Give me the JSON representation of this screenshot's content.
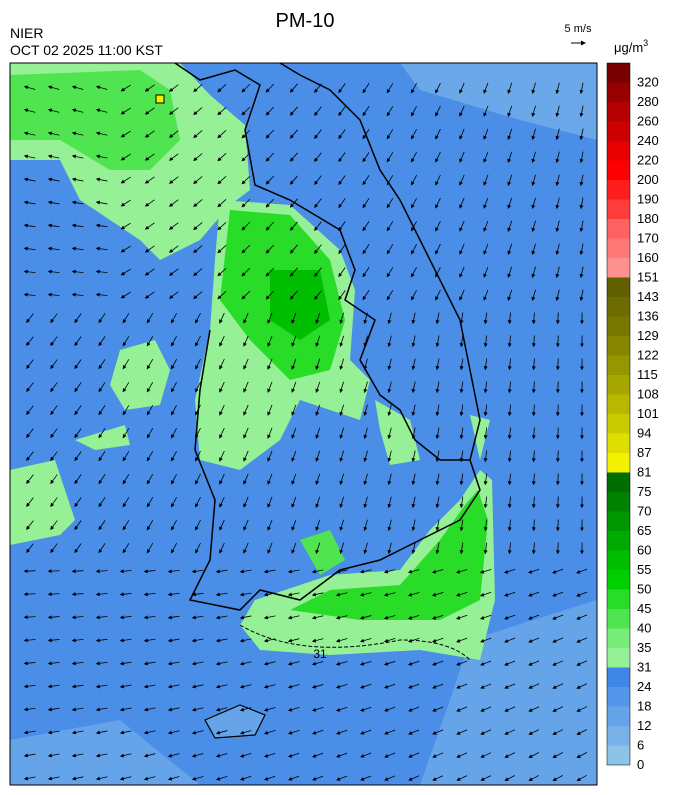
{
  "header": {
    "title": "PM-10",
    "agency": "NIER",
    "timestamp": "OCT 02 2025 11:00 KST"
  },
  "wind_scale": {
    "label": "5 m/s"
  },
  "legend": {
    "unit": "μg/m",
    "unit_exponent": "3",
    "levels": [
      {
        "label": 0,
        "color": "#8ec3e8"
      },
      {
        "label": 6,
        "color": "#78b2e8"
      },
      {
        "label": 12,
        "color": "#66a4ea"
      },
      {
        "label": 18,
        "color": "#5496ea"
      },
      {
        "label": 24,
        "color": "#3f86e6"
      },
      {
        "label": 31,
        "color": "#96f096"
      },
      {
        "label": 35,
        "color": "#78ec78"
      },
      {
        "label": 40,
        "color": "#50e450"
      },
      {
        "label": 45,
        "color": "#28dc28"
      },
      {
        "label": 50,
        "color": "#00d000"
      },
      {
        "label": 55,
        "color": "#00be00"
      },
      {
        "label": 60,
        "color": "#00aa00"
      },
      {
        "label": 65,
        "color": "#009600"
      },
      {
        "label": 70,
        "color": "#008200"
      },
      {
        "label": 75,
        "color": "#006e00"
      },
      {
        "label": 81,
        "color": "#f2f200"
      },
      {
        "label": 87,
        "color": "#dede00"
      },
      {
        "label": 94,
        "color": "#caca00"
      },
      {
        "label": 101,
        "color": "#b8b800"
      },
      {
        "label": 108,
        "color": "#a6a600"
      },
      {
        "label": 115,
        "color": "#969600"
      },
      {
        "label": 122,
        "color": "#868600"
      },
      {
        "label": 129,
        "color": "#787800"
      },
      {
        "label": 136,
        "color": "#6c6c00"
      },
      {
        "label": 143,
        "color": "#606000"
      },
      {
        "label": 151,
        "color": "#ff9090"
      },
      {
        "label": 160,
        "color": "#ff7878"
      },
      {
        "label": 170,
        "color": "#ff6060"
      },
      {
        "label": 180,
        "color": "#ff3c3c"
      },
      {
        "label": 190,
        "color": "#ff1e1e"
      },
      {
        "label": 200,
        "color": "#ff0000"
      },
      {
        "label": 220,
        "color": "#e60000"
      },
      {
        "label": 240,
        "color": "#cc0000"
      },
      {
        "label": 260,
        "color": "#b40000"
      },
      {
        "label": 280,
        "color": "#960000"
      },
      {
        "label": 320,
        "color": "#780000"
      }
    ]
  },
  "map": {
    "contour_label": "31"
  }
}
